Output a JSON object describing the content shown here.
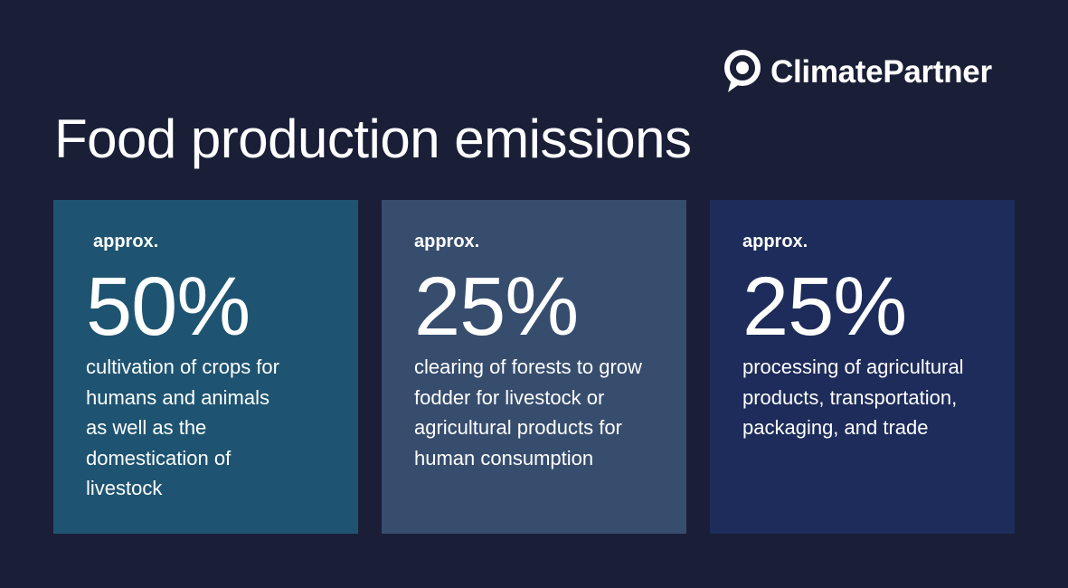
{
  "brand": {
    "name": "ClimatePartner"
  },
  "title": "Food production emissions",
  "cards": [
    {
      "prefix": "approx.",
      "value": "50%",
      "description": "cultivation of crops for humans and animals as well as the domestication of livestock",
      "color": "#1e5471"
    },
    {
      "prefix": "approx.",
      "value": "25%",
      "description": "clearing of forests to grow fodder for livestock or agricultural products for human consumption",
      "color": "#374d6e"
    },
    {
      "prefix": "approx.",
      "value": "25%",
      "description": "processing of agricultural products, transportation, packaging, and trade",
      "color": "#1d2c5a"
    }
  ],
  "colors": {
    "background": "#1a1f37",
    "text": "#ffffff"
  }
}
